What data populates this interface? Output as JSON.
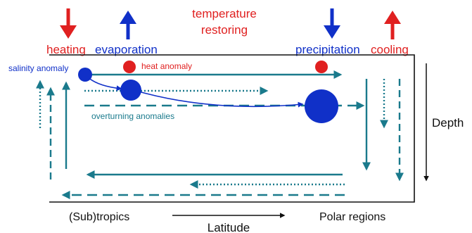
{
  "labels": {
    "heating": "heating",
    "evaporation": "evaporation",
    "temperature_restoring_line1": "temperature",
    "temperature_restoring_line2": "restoring",
    "precipitation": "precipitation",
    "cooling": "cooling",
    "salinity_anomaly": "salinity anomaly",
    "heat_anomaly": "heat anomaly",
    "overturning_anomalies": "overturning anomalies",
    "depth": "Depth",
    "subtropics": "(Sub)tropics",
    "polar_regions": "Polar regions",
    "latitude": "Latitude"
  },
  "colors": {
    "heating": "#e02020",
    "cooling": "#e02020",
    "evaporation": "#1030c8",
    "precipitation": "#1030c8",
    "salinity": "#1030c8",
    "heat": "#e02020",
    "circulation": "#1a7a8c",
    "axis": "#111111"
  }
}
